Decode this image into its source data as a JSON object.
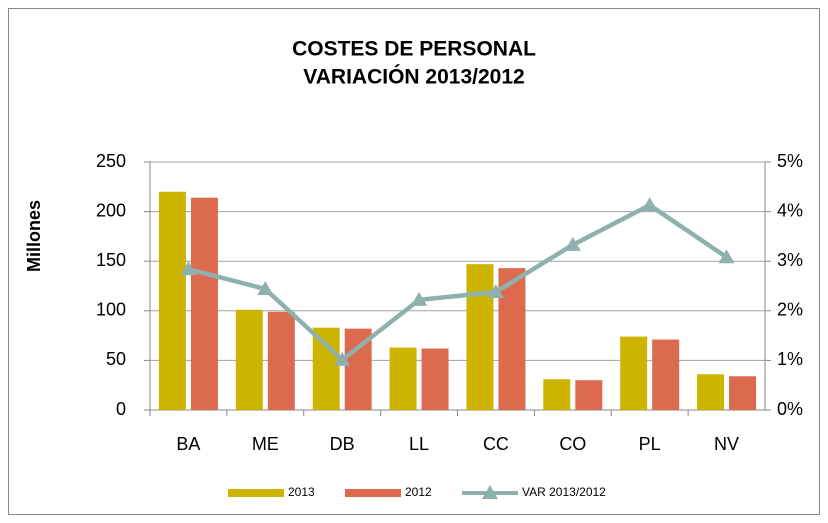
{
  "chart_data": {
    "type": "bar",
    "title": [
      "COSTES DE PERSONAL",
      "VARIACIÓN 2013/2012"
    ],
    "ylabel": "Millones",
    "categories": [
      "BA",
      "ME",
      "DB",
      "LL",
      "CC",
      "CO",
      "PL",
      "NV"
    ],
    "series": [
      {
        "name": "2013",
        "type": "bar",
        "color": "#ccb400",
        "values": [
          220,
          101,
          83,
          63,
          147,
          31,
          74,
          36
        ]
      },
      {
        "name": "2012",
        "type": "bar",
        "color": "#dc6a4f",
        "values": [
          214,
          99,
          82,
          62,
          143,
          30,
          71,
          34
        ]
      },
      {
        "name": "VAR 2013/2012",
        "type": "line",
        "axis": "y2",
        "color": "#8fb1ad",
        "values": [
          2.84,
          2.44,
          1.01,
          2.22,
          2.38,
          3.33,
          4.13,
          3.08
        ]
      }
    ],
    "ylim": [
      0,
      250
    ],
    "yticks": [
      0,
      50,
      100,
      150,
      200,
      250
    ],
    "y2lim": [
      0,
      5
    ],
    "y2ticks": [
      {
        "value": 0,
        "label": "0%"
      },
      {
        "value": 1,
        "label": "1%"
      },
      {
        "value": 2,
        "label": "2%"
      },
      {
        "value": 3,
        "label": "3%"
      },
      {
        "value": 4,
        "label": "4%"
      },
      {
        "value": 5,
        "label": "5%"
      }
    ],
    "grid": true,
    "legend": "bottom"
  }
}
